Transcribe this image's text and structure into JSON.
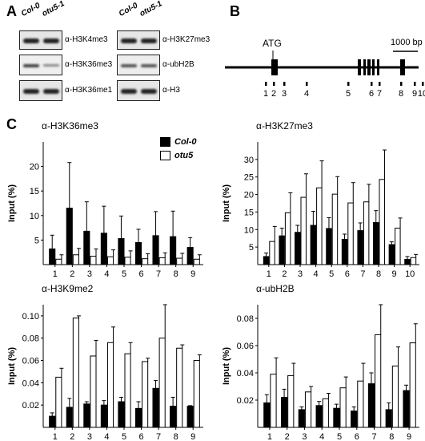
{
  "panels": {
    "a": {
      "letter": "A"
    },
    "b": {
      "letter": "B"
    },
    "c": {
      "letter": "C"
    }
  },
  "blots": {
    "lanes": [
      "Col-0",
      "otu5-1"
    ],
    "left": [
      "α-H3K4me3",
      "α-H3K36me3",
      "α-H3K36me1"
    ],
    "right": [
      "α-H3K27me3",
      "α-ubH2B",
      "α-H3"
    ]
  },
  "gene_diagram": {
    "atg_label": "ATG",
    "scale_label": "1000 bp",
    "positions": [
      "1",
      "2",
      "3",
      "4",
      "5",
      "6",
      "7",
      "8",
      "9",
      "10"
    ]
  },
  "legend": {
    "items": [
      {
        "label": "Col-0",
        "color": "#000000"
      },
      {
        "label": "otu5",
        "color": "#ffffff"
      }
    ]
  },
  "chart_data": [
    {
      "type": "bar",
      "title": "α-H3K36me3",
      "ylabel": "Input (%)",
      "categories": [
        "1",
        "2",
        "3",
        "4",
        "5",
        "6",
        "7",
        "8",
        "9"
      ],
      "ylim": [
        0,
        25
      ],
      "yticks": [
        5,
        10,
        15,
        20
      ],
      "series": [
        {
          "name": "Col-0",
          "values": [
            3.2,
            11.5,
            6.8,
            6.4,
            5.3,
            4.5,
            5.9,
            5.7,
            3.5
          ],
          "errors": [
            2.8,
            9.3,
            6.0,
            5.5,
            4.6,
            2.7,
            4.9,
            5.2,
            2.0
          ]
        },
        {
          "name": "otu5",
          "values": [
            1.1,
            2.0,
            1.7,
            1.6,
            1.5,
            1.2,
            1.4,
            1.3,
            1.1
          ],
          "errors": [
            0.9,
            1.3,
            1.5,
            1.4,
            1.3,
            1.0,
            1.0,
            1.0,
            0.9
          ]
        }
      ]
    },
    {
      "type": "bar",
      "title": "α-H3K27me3",
      "ylabel": "Input (%)",
      "categories": [
        "1",
        "2",
        "3",
        "4",
        "5",
        "6",
        "7",
        "8",
        "9",
        "10"
      ],
      "ylim": [
        0,
        35
      ],
      "yticks": [
        5,
        10,
        15,
        20,
        25,
        30
      ],
      "series": [
        {
          "name": "Col-0",
          "values": [
            2.3,
            8.2,
            9.2,
            11.2,
            10.3,
            7.2,
            9.7,
            12.0,
            5.7,
            1.5
          ],
          "errors": [
            1.0,
            2.2,
            2.0,
            4.0,
            3.1,
            1.5,
            2.2,
            3.4,
            0.8,
            0.8
          ]
        },
        {
          "name": "otu5",
          "values": [
            6.6,
            14.8,
            19.2,
            21.9,
            20.1,
            17.6,
            17.9,
            24.3,
            10.4,
            2.0
          ],
          "errors": [
            4.3,
            5.7,
            6.7,
            7.7,
            5.0,
            5.8,
            5.0,
            8.4,
            2.9,
            0.9
          ]
        }
      ]
    },
    {
      "type": "bar",
      "title": "α-H3K9me2",
      "ylabel": "Input (%)",
      "categories": [
        "1",
        "2",
        "3",
        "4",
        "5",
        "6",
        "7",
        "8",
        "9"
      ],
      "ylim": [
        0,
        0.11
      ],
      "yticks": [
        0.02,
        0.04,
        0.06,
        0.08,
        0.1
      ],
      "ytick_labels": [
        "0.02",
        "0.04",
        "0.06",
        "0.08",
        "0.10"
      ],
      "series": [
        {
          "name": "Col-0",
          "values": [
            0.01,
            0.018,
            0.021,
            0.02,
            0.023,
            0.017,
            0.035,
            0.019,
            0.019
          ],
          "errors": [
            0.003,
            0.008,
            0.002,
            0.004,
            0.004,
            0.006,
            0.007,
            0.008,
            0.0005
          ]
        },
        {
          "name": "otu5",
          "values": [
            0.045,
            0.098,
            0.064,
            0.076,
            0.066,
            0.059,
            0.08,
            0.071,
            0.06
          ],
          "errors": [
            0.008,
            0.002,
            0.014,
            0.014,
            0.01,
            0.003,
            0.03,
            0.003,
            0.005
          ]
        }
      ]
    },
    {
      "type": "bar",
      "title": "α-ubH2B",
      "ylabel": "Input (%)",
      "categories": [
        "1",
        "2",
        "3",
        "4",
        "5",
        "6",
        "7",
        "8",
        "9"
      ],
      "ylim": [
        0,
        0.09
      ],
      "yticks": [
        0.02,
        0.04,
        0.06,
        0.08
      ],
      "ytick_labels": [
        "0.02",
        "0.04",
        "0.06",
        "0.08"
      ],
      "series": [
        {
          "name": "Col-0",
          "values": [
            0.018,
            0.022,
            0.013,
            0.016,
            0.014,
            0.012,
            0.032,
            0.013,
            0.027
          ],
          "errors": [
            0.006,
            0.006,
            0.002,
            0.003,
            0.003,
            0.003,
            0.008,
            0.005,
            0.004
          ]
        },
        {
          "name": "otu5",
          "values": [
            0.039,
            0.038,
            0.026,
            0.021,
            0.029,
            0.034,
            0.068,
            0.045,
            0.062
          ],
          "errors": [
            0.012,
            0.009,
            0.004,
            0.004,
            0.008,
            0.013,
            0.022,
            0.014,
            0.014
          ]
        }
      ]
    }
  ]
}
